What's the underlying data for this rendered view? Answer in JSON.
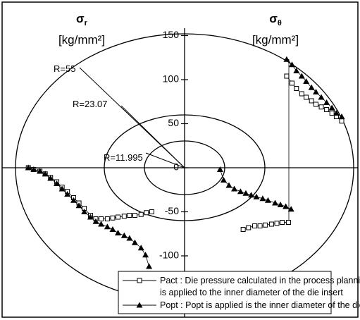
{
  "chart_data": {
    "type": "scatter",
    "axis_label_left": {
      "symbol": "σ",
      "subscript": "r",
      "unit": "[kg/mm²]"
    },
    "axis_label_right": {
      "symbol": "σ",
      "subscript": "θ",
      "unit": "[kg/mm²]"
    },
    "annotations": [
      "R=55",
      "R=23.07",
      "R=11.995"
    ],
    "ylim": [
      -190,
      152
    ],
    "xlim": [
      -190,
      190
    ],
    "yticks": [
      -100,
      -50,
      0,
      50,
      100,
      150
    ],
    "series": [
      {
        "name": "Pact : Die pressure calculated in the process planning module",
        "name2": "is applied to the inner diameter of the die insert",
        "marker": "square",
        "color": "#000000",
        "x": [
          115,
          121,
          126,
          132,
          137,
          143,
          148,
          154,
          160,
          166,
          171,
          177,
          null,
          66,
          72,
          79,
          85,
          91,
          98,
          104,
          110,
          117,
          null,
          -176,
          -170,
          -163,
          -157,
          -151,
          -144,
          -138,
          -132,
          -125,
          -119,
          -113,
          -106,
          -100,
          -94,
          -87,
          -81,
          -75,
          -68,
          -62,
          -56,
          -49,
          -43,
          -37
        ],
        "values": [
          104,
          96,
          90,
          84,
          80,
          76,
          72,
          69,
          66,
          62,
          58,
          53,
          null,
          -70,
          -68,
          -66,
          -66,
          -65,
          -64,
          -63,
          -62,
          -62,
          null,
          0,
          -2,
          -4,
          -7,
          -11,
          -16,
          -22,
          -27,
          -34,
          -40,
          -46,
          -54,
          -58,
          -58,
          -58,
          -57,
          -56,
          -55,
          -54,
          -54,
          -53,
          -51,
          -50
        ]
      },
      {
        "name": "Popt : Popt is applied is the inner diameter of the die insert",
        "marker": "triangle",
        "color": "#000000",
        "x": [
          115,
          121,
          126,
          132,
          137,
          143,
          148,
          154,
          160,
          166,
          171,
          177,
          null,
          40,
          44,
          50,
          56,
          63,
          69,
          75,
          81,
          88,
          94,
          102,
          108,
          114,
          120,
          null,
          -176,
          -170,
          -163,
          -157,
          -151,
          -144,
          -138,
          -132,
          -125,
          -119,
          -113,
          -106,
          -100,
          -94,
          -87,
          -81,
          -75,
          -68,
          -62,
          -56,
          -49,
          -44,
          -40
        ],
        "values": [
          123,
          117,
          110,
          104,
          98,
          91,
          86,
          80,
          74,
          68,
          62,
          58,
          null,
          -2,
          -14,
          -20,
          -24,
          -27,
          -29,
          -31,
          -33,
          -35,
          -37,
          -40,
          -42,
          -44,
          -47,
          null,
          0,
          -2,
          -4,
          -7,
          -12,
          -18,
          -24,
          -30,
          -37,
          -43,
          -50,
          -56,
          -61,
          -64,
          -67,
          -70,
          -74,
          -77,
          -80,
          -85,
          -91,
          -99,
          -112
        ]
      }
    ]
  }
}
